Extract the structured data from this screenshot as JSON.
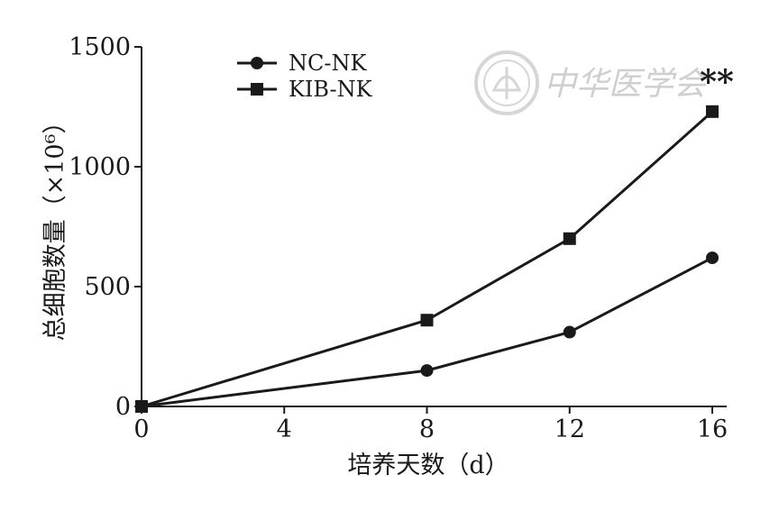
{
  "chart_data": {
    "type": "line",
    "x": [
      0,
      8,
      12,
      16
    ],
    "series": [
      {
        "name": "NC-NK",
        "marker": "circle",
        "values": [
          0,
          150,
          310,
          620
        ]
      },
      {
        "name": "KIB-NK",
        "marker": "square",
        "values": [
          0,
          360,
          700,
          1230
        ]
      }
    ],
    "xlabel": "培养天数（d）",
    "ylabel": "总细胞数量（×10⁶）",
    "xlim": [
      0,
      16
    ],
    "ylim": [
      0,
      1500
    ],
    "xticks": [
      0,
      4,
      8,
      12,
      16
    ],
    "yticks": [
      0,
      500,
      1000,
      1500
    ],
    "grid": false,
    "legend_position": "top-left",
    "annotations": [
      {
        "text": "**",
        "x": 16
      }
    ],
    "colors": {
      "line": "#1a1a1a",
      "watermark": "#cfcfcf"
    }
  },
  "watermark": {
    "text": "中华医学会",
    "icon": "seal-emblem-icon"
  }
}
